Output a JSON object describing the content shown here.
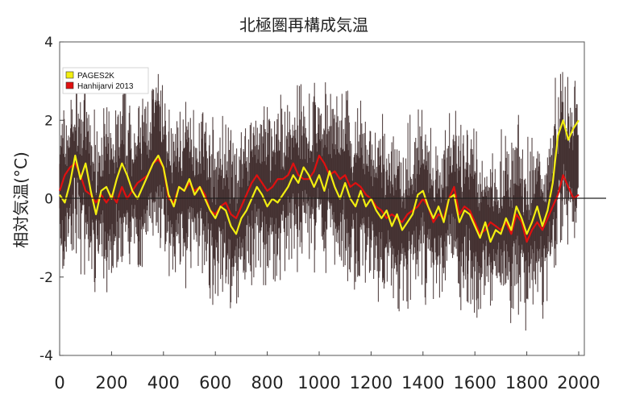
{
  "chart_data": {
    "type": "line",
    "title": "北極圏再構成気温",
    "xlabel": "",
    "ylabel": "相対気温(°C)",
    "xlim": [
      0,
      2000
    ],
    "ylim": [
      -4,
      4
    ],
    "x_ticks": [
      "0",
      "200",
      "400",
      "600",
      "800",
      "1000",
      "1200",
      "1400",
      "1600",
      "1800",
      "2000"
    ],
    "y_ticks": [
      "4",
      "2",
      "0",
      "-2",
      "-4"
    ],
    "zero_line": true,
    "grid": false,
    "legend_position": "top-left",
    "colors": {
      "pages2k": "#f2ee10",
      "hanhijarvi": "#e01010",
      "annual": "#3a2626",
      "axis": "#444444"
    },
    "series": [
      {
        "name": "PAGES2K",
        "color": "#f2ee10",
        "x": [
          0,
          20,
          40,
          60,
          80,
          100,
          120,
          140,
          160,
          180,
          200,
          220,
          240,
          260,
          280,
          300,
          320,
          340,
          360,
          380,
          400,
          420,
          440,
          460,
          480,
          500,
          520,
          540,
          560,
          580,
          600,
          620,
          640,
          660,
          680,
          700,
          720,
          740,
          760,
          780,
          800,
          820,
          840,
          860,
          880,
          900,
          920,
          940,
          960,
          980,
          1000,
          1020,
          1040,
          1060,
          1080,
          1100,
          1120,
          1140,
          1160,
          1180,
          1200,
          1220,
          1240,
          1260,
          1280,
          1300,
          1320,
          1340,
          1360,
          1380,
          1400,
          1420,
          1440,
          1460,
          1480,
          1500,
          1520,
          1540,
          1560,
          1580,
          1600,
          1620,
          1640,
          1660,
          1680,
          1700,
          1720,
          1740,
          1760,
          1780,
          1800,
          1820,
          1840,
          1860,
          1880,
          1900,
          1920,
          1940,
          1960,
          1980,
          2000
        ],
        "values": [
          0.1,
          -0.1,
          0.4,
          1.1,
          0.5,
          0.9,
          0.2,
          -0.4,
          0.2,
          0.3,
          0.0,
          0.5,
          0.9,
          0.6,
          0.2,
          0.0,
          0.3,
          0.6,
          0.9,
          1.1,
          0.8,
          0.1,
          -0.2,
          0.3,
          0.2,
          0.5,
          0.1,
          0.3,
          0.0,
          -0.3,
          -0.5,
          -0.2,
          -0.3,
          -0.7,
          -0.9,
          -0.5,
          -0.3,
          0.0,
          0.3,
          0.1,
          -0.2,
          0.0,
          -0.1,
          0.1,
          0.3,
          0.6,
          0.4,
          0.8,
          0.6,
          0.3,
          0.6,
          0.2,
          0.7,
          0.3,
          0.0,
          0.4,
          0.0,
          -0.2,
          0.2,
          -0.2,
          0.0,
          -0.3,
          -0.5,
          -0.3,
          -0.7,
          -0.4,
          -0.8,
          -0.6,
          -0.4,
          0.1,
          0.2,
          -0.2,
          -0.5,
          -0.2,
          -0.6,
          0.0,
          0.1,
          -0.6,
          -0.3,
          -0.4,
          -0.7,
          -1.0,
          -0.6,
          -1.1,
          -0.8,
          -0.9,
          -0.5,
          -0.8,
          -0.2,
          -0.5,
          -0.9,
          -0.6,
          -0.2,
          -0.7,
          -0.3,
          0.4,
          1.6,
          2.0,
          1.5,
          1.8,
          2.0
        ]
      },
      {
        "name": "Hanhijarvi 2013",
        "color": "#e01010",
        "x": [
          0,
          20,
          40,
          60,
          80,
          100,
          120,
          140,
          160,
          180,
          200,
          220,
          240,
          260,
          280,
          300,
          320,
          340,
          360,
          380,
          400,
          420,
          440,
          460,
          480,
          500,
          520,
          540,
          560,
          580,
          600,
          620,
          640,
          660,
          680,
          700,
          720,
          740,
          760,
          780,
          800,
          820,
          840,
          860,
          880,
          900,
          920,
          940,
          960,
          980,
          1000,
          1020,
          1040,
          1060,
          1080,
          1100,
          1120,
          1140,
          1160,
          1180,
          1200,
          1220,
          1240,
          1260,
          1280,
          1300,
          1320,
          1340,
          1360,
          1380,
          1400,
          1420,
          1440,
          1460,
          1480,
          1500,
          1520,
          1540,
          1560,
          1580,
          1600,
          1620,
          1640,
          1660,
          1680,
          1700,
          1720,
          1740,
          1760,
          1780,
          1800,
          1820,
          1840,
          1860,
          1880,
          1900,
          1920,
          1940,
          1960,
          1980,
          2000
        ],
        "values": [
          0.2,
          0.6,
          0.8,
          0.9,
          0.6,
          0.2,
          0.1,
          -0.1,
          0.1,
          -0.1,
          0.1,
          -0.1,
          0.3,
          0.0,
          0.2,
          0.4,
          0.5,
          0.6,
          0.9,
          1.0,
          0.8,
          0.0,
          -0.1,
          0.3,
          0.2,
          0.4,
          0.2,
          0.3,
          0.1,
          -0.3,
          -0.4,
          -0.2,
          -0.1,
          -0.4,
          -0.5,
          -0.2,
          0.1,
          0.4,
          0.6,
          0.4,
          0.2,
          0.3,
          0.5,
          0.5,
          0.6,
          0.9,
          0.6,
          0.5,
          0.5,
          0.7,
          1.1,
          0.9,
          0.6,
          0.7,
          0.5,
          0.6,
          0.3,
          0.4,
          0.3,
          0.1,
          0.0,
          -0.2,
          -0.3,
          -0.5,
          -0.4,
          -0.5,
          -0.6,
          -0.4,
          -0.3,
          -0.2,
          0.0,
          -0.2,
          -0.6,
          -0.4,
          -0.5,
          0.0,
          0.3,
          -0.4,
          -0.2,
          -0.3,
          -0.6,
          -0.9,
          -0.8,
          -0.6,
          -0.7,
          -0.8,
          -0.6,
          -0.9,
          -0.4,
          -0.6,
          -1.1,
          -0.8,
          -0.6,
          -0.8,
          -0.5,
          -0.2,
          0.1,
          0.6,
          0.3,
          0.0,
          0.1
        ]
      },
      {
        "name": "",
        "color": "#3a2626",
        "values_note": "annual series",
        "x": [
          0,
          20,
          40,
          60,
          80,
          100,
          120,
          140,
          160,
          180,
          200,
          220,
          240,
          260,
          280,
          300,
          320,
          340,
          360,
          380,
          400,
          420,
          440,
          460,
          480,
          500,
          520,
          540,
          560,
          580,
          600,
          620,
          640,
          660,
          680,
          700,
          720,
          740,
          760,
          780,
          800,
          820,
          840,
          860,
          880,
          900,
          920,
          940,
          960,
          980,
          1000,
          1020,
          1040,
          1060,
          1080,
          1100,
          1120,
          1140,
          1160,
          1180,
          1200,
          1220,
          1240,
          1260,
          1280,
          1300,
          1320,
          1340,
          1360,
          1380,
          1400,
          1420,
          1440,
          1460,
          1480,
          1500,
          1520,
          1540,
          1560,
          1580,
          1600,
          1620,
          1640,
          1660,
          1680,
          1700,
          1720,
          1740,
          1760,
          1780,
          1800,
          1820,
          1840,
          1860,
          1880,
          1900,
          1920,
          1940,
          1960,
          1980,
          2000
        ],
        "values": [
          0.15,
          0.25,
          0.6,
          1.0,
          0.55,
          0.55,
          0.15,
          -0.25,
          0.15,
          0.1,
          0.05,
          0.2,
          0.6,
          0.3,
          0.2,
          0.2,
          0.4,
          0.6,
          0.9,
          1.05,
          0.8,
          0.05,
          -0.15,
          0.3,
          0.2,
          0.45,
          0.15,
          0.3,
          0.05,
          -0.3,
          -0.45,
          -0.2,
          -0.2,
          -0.55,
          -0.7,
          -0.35,
          -0.1,
          0.2,
          0.45,
          0.25,
          0.0,
          0.15,
          0.2,
          0.3,
          0.45,
          0.75,
          0.5,
          0.65,
          0.55,
          0.5,
          0.85,
          0.55,
          0.65,
          0.5,
          0.25,
          0.5,
          0.15,
          0.1,
          0.25,
          -0.05,
          0.0,
          -0.25,
          -0.4,
          -0.4,
          -0.55,
          -0.45,
          -0.7,
          -0.5,
          -0.35,
          -0.05,
          0.1,
          -0.2,
          -0.55,
          -0.3,
          -0.55,
          0.0,
          0.2,
          -0.5,
          -0.25,
          -0.35,
          -0.65,
          -0.95,
          -0.7,
          -0.85,
          -0.75,
          -0.85,
          -0.55,
          -0.85,
          -0.3,
          -0.55,
          -1.0,
          -0.7,
          -0.4,
          -0.75,
          -0.4,
          0.1,
          0.85,
          1.3,
          0.9,
          0.9,
          1.05
        ]
      }
    ]
  }
}
